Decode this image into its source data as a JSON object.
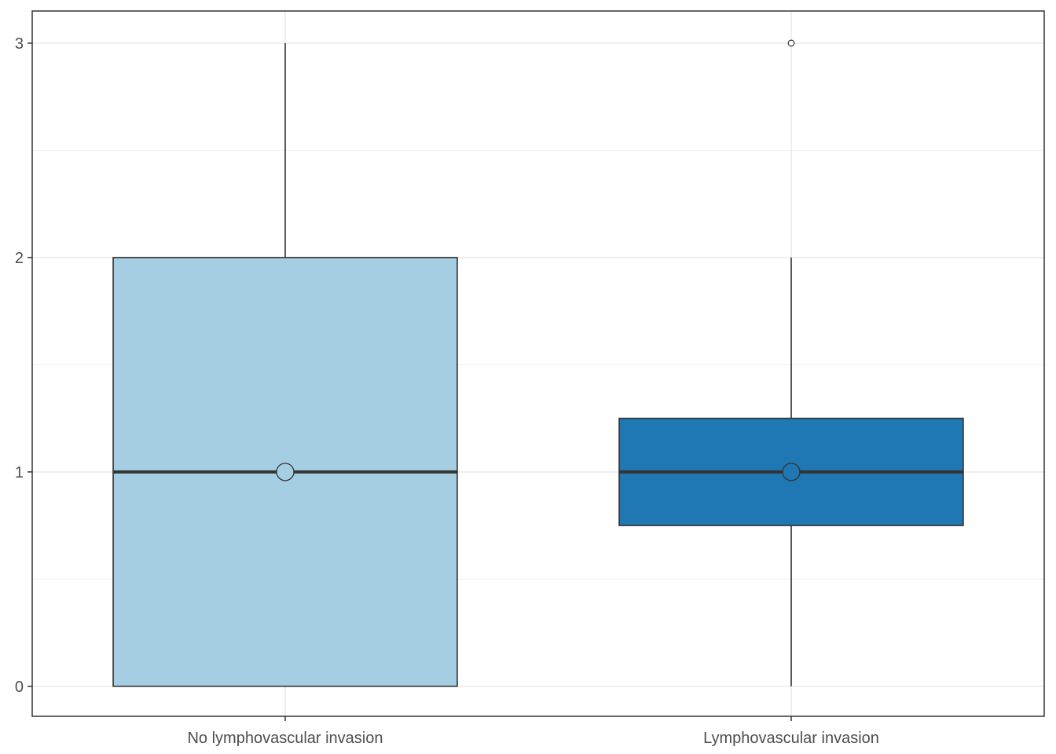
{
  "chart_data": {
    "type": "boxplot",
    "categories": [
      "No lymphovascular invasion",
      "Lymphovascular invasion"
    ],
    "boxes": [
      {
        "category": "No lymphovascular invasion",
        "min": 0,
        "q1": 0,
        "median": 1,
        "q3": 2,
        "max": 3,
        "mean": 1,
        "outliers": [],
        "color": "#a6cee3"
      },
      {
        "category": "Lymphovascular invasion",
        "min": 0,
        "q1": 0.75,
        "median": 1,
        "q3": 1.25,
        "max": 2,
        "mean": 1,
        "outliers": [
          3
        ],
        "color": "#1f78b4"
      }
    ],
    "yticks": [
      0,
      1,
      2,
      3
    ],
    "ylim": [
      -0.14,
      3.15
    ],
    "grid": true,
    "title": "",
    "xlabel": "",
    "ylabel": ""
  }
}
